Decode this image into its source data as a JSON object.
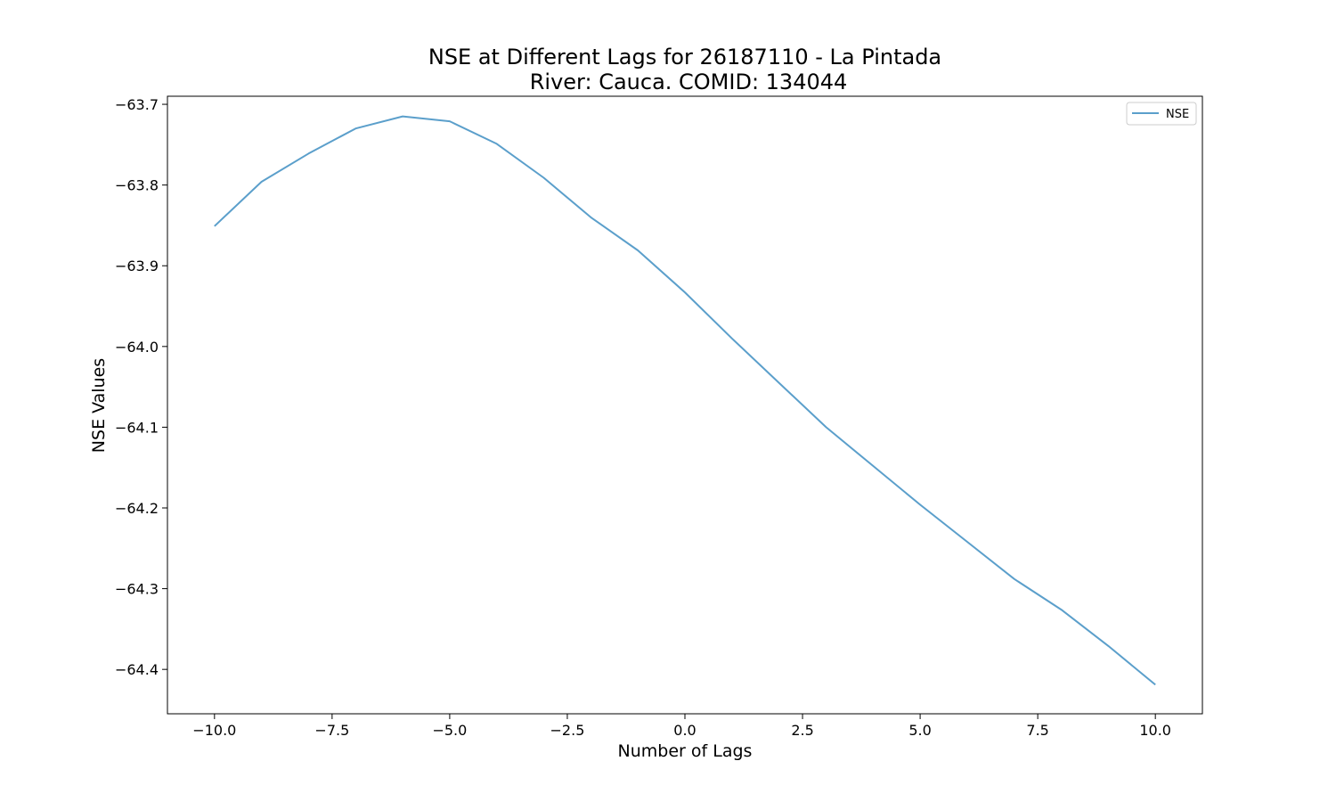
{
  "chart_data": {
    "type": "line",
    "title_line1": "NSE at Different Lags for 26187110 - La Pintada",
    "title_line2": "River: Cauca. COMID: 134044",
    "xlabel": "Number of Lags",
    "ylabel": "NSE Values",
    "xlim": [
      -11.0,
      11.0
    ],
    "ylim": [
      -64.455,
      -63.69
    ],
    "x_ticks": [
      -10.0,
      -7.5,
      -5.0,
      -2.5,
      0.0,
      2.5,
      5.0,
      7.5,
      10.0
    ],
    "x_tick_labels": [
      "−10.0",
      "−7.5",
      "−5.0",
      "−2.5",
      "0.0",
      "2.5",
      "5.0",
      "7.5",
      "10.0"
    ],
    "y_ticks": [
      -63.7,
      -63.8,
      -63.9,
      -64.0,
      -64.1,
      -64.2,
      -64.3,
      -64.4
    ],
    "y_tick_labels": [
      "−63.7",
      "−63.8",
      "−63.9",
      "−64.0",
      "−64.1",
      "−64.2",
      "−64.3",
      "−64.4"
    ],
    "grid": false,
    "legend_position": "top-right",
    "series": [
      {
        "name": "NSE",
        "color": "#5b9fcb",
        "x": [
          -10,
          -9,
          -8,
          -7,
          -6,
          -5,
          -4,
          -3,
          -2,
          -1,
          0,
          1,
          2,
          3,
          4,
          5,
          6,
          7,
          8,
          9,
          10
        ],
        "y": [
          -63.851,
          -63.796,
          -63.761,
          -63.73,
          -63.715,
          -63.721,
          -63.749,
          -63.791,
          -63.84,
          -63.881,
          -63.933,
          -63.99,
          -64.045,
          -64.1,
          -64.148,
          -64.196,
          -64.242,
          -64.288,
          -64.326,
          -64.371,
          -64.419
        ]
      }
    ]
  }
}
